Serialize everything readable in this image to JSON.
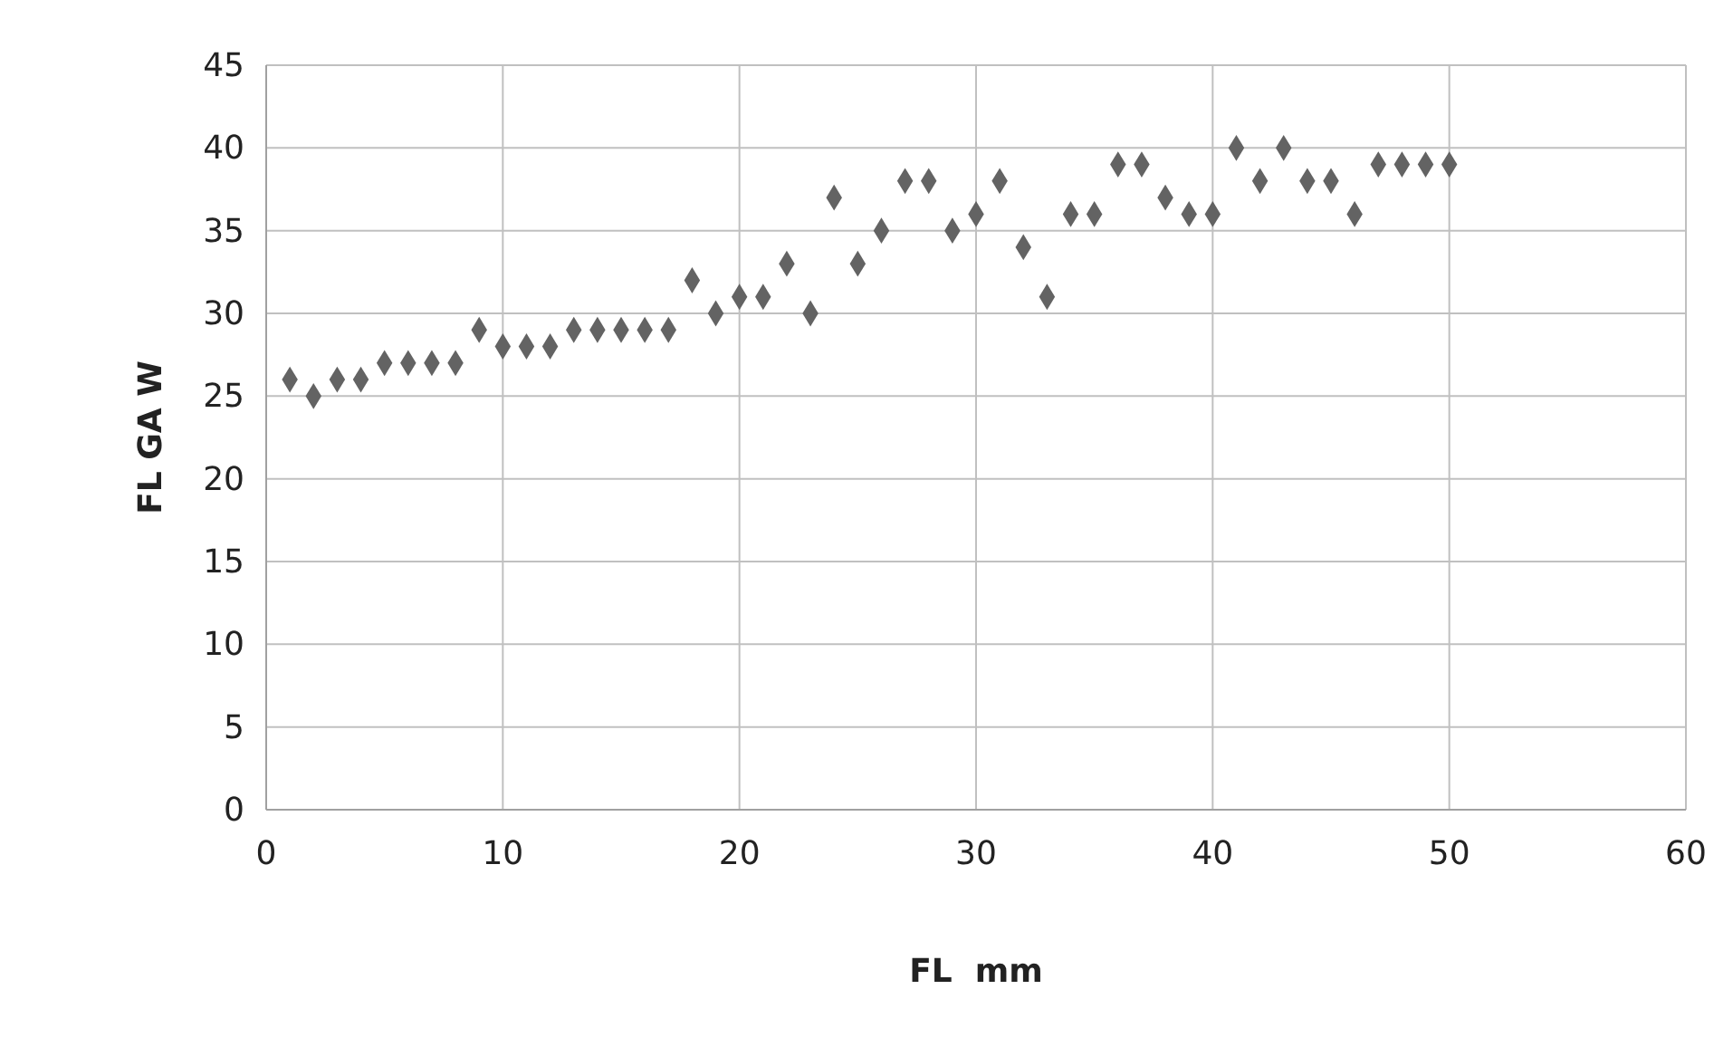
{
  "chart_data": {
    "type": "scatter",
    "xlabel": "FL  mm",
    "ylabel": "FL GA W",
    "xlim": [
      0,
      60
    ],
    "xticks": [
      0,
      10,
      20,
      30,
      40,
      50,
      60
    ],
    "ylim": [
      0,
      45
    ],
    "yticks": [
      0,
      5,
      10,
      15,
      20,
      25,
      30,
      35,
      40,
      45
    ],
    "grid": true,
    "marker": "diamond",
    "series": [
      {
        "color": "#636363",
        "x": [
          1,
          2,
          3,
          4,
          5,
          6,
          7,
          8,
          9,
          10,
          11,
          12,
          13,
          14,
          15,
          16,
          17,
          18,
          19,
          20,
          21,
          22,
          23,
          24,
          25,
          26,
          27,
          28,
          29,
          30,
          31,
          32,
          33,
          34,
          35,
          36,
          37,
          38,
          39,
          40,
          41,
          42,
          43,
          44,
          45,
          46,
          47,
          48,
          49,
          50
        ],
        "values": [
          26,
          25,
          26,
          26,
          27,
          27,
          27,
          27,
          29,
          28,
          28,
          28,
          29,
          29,
          29,
          29,
          29,
          32,
          30,
          31,
          31,
          33,
          30,
          37,
          33,
          35,
          38,
          38,
          35,
          36,
          38,
          34,
          31,
          36,
          36,
          39,
          39,
          37,
          36,
          36,
          40,
          38,
          40,
          38,
          38,
          36,
          39,
          39,
          39,
          39
        ]
      }
    ]
  }
}
